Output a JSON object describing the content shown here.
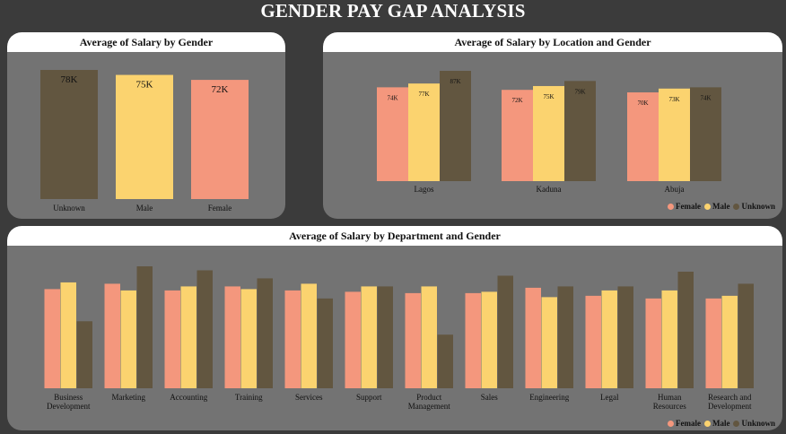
{
  "title": "GENDER PAY GAP ANALYSIS",
  "colors": {
    "Female": "#f4977d",
    "Male": "#fbd36f",
    "Unknown": "#625640"
  },
  "legend": [
    "Female",
    "Male",
    "Unknown"
  ],
  "chart_data": [
    {
      "type": "bar",
      "title": "Average of Salary by Gender",
      "categories": [
        "Unknown",
        "Male",
        "Female"
      ],
      "values": [
        78,
        75,
        72
      ],
      "data_labels": [
        "78K",
        "75K",
        "72K"
      ],
      "bar_colors": [
        "#625640",
        "#fbd36f",
        "#f4977d"
      ],
      "ylim": [
        0,
        78
      ]
    },
    {
      "type": "bar",
      "title": "Average of Salary by Location and Gender",
      "categories": [
        "Lagos",
        "Kaduna",
        "Abuja"
      ],
      "series": [
        {
          "name": "Female",
          "values": [
            74,
            72,
            70
          ],
          "labels": [
            "74K",
            "72K",
            "70K"
          ]
        },
        {
          "name": "Male",
          "values": [
            77,
            75,
            73
          ],
          "labels": [
            "77K",
            "75K",
            "73K"
          ]
        },
        {
          "name": "Unknown",
          "values": [
            87,
            79,
            74
          ],
          "labels": [
            "87K",
            "79K",
            "74K"
          ]
        }
      ],
      "ylim": [
        0,
        87
      ],
      "legend_position": "bottom-right"
    },
    {
      "type": "bar",
      "title": "Average of Salary by Department and Gender",
      "categories": [
        "Business Development",
        "Marketing",
        "Accounting",
        "Training",
        "Services",
        "Support",
        "Product Management",
        "Sales",
        "Engineering",
        "Legal",
        "Human Resources",
        "Research and Development"
      ],
      "series": [
        {
          "name": "Female",
          "values": [
            74,
            78,
            73,
            76,
            73,
            72,
            71,
            71,
            75,
            69,
            67,
            67
          ]
        },
        {
          "name": "Male",
          "values": [
            79,
            73,
            76,
            74,
            78,
            76,
            76,
            72,
            68,
            73,
            73,
            69
          ]
        },
        {
          "name": "Unknown",
          "values": [
            50,
            91,
            88,
            82,
            67,
            76,
            40,
            84,
            76,
            76,
            87,
            78
          ]
        }
      ],
      "ylim": [
        0,
        91
      ],
      "legend_position": "bottom-right"
    }
  ]
}
